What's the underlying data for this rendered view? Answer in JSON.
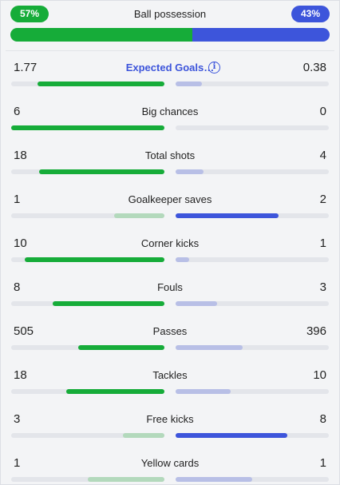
{
  "possession": {
    "title": "Ball possession",
    "home_label": "57%",
    "away_label": "43%",
    "home_pct": 57,
    "away_pct": 43
  },
  "stats": [
    {
      "label": "Expected Goals…",
      "home": "1.77",
      "away": "0.38",
      "home_num": 1.77,
      "away_num": 0.38,
      "link": true,
      "info_icon": "info-icon",
      "home_fill": 0.83,
      "away_fill": 0.17
    },
    {
      "label": "Big chances",
      "home": "6",
      "away": "0",
      "home_num": 6,
      "away_num": 0,
      "home_fill": 1.0,
      "away_fill": 0.0
    },
    {
      "label": "Total shots",
      "home": "18",
      "away": "4",
      "home_num": 18,
      "away_num": 4,
      "home_fill": 0.82,
      "away_fill": 0.18
    },
    {
      "label": "Goalkeeper saves",
      "home": "1",
      "away": "2",
      "home_num": 1,
      "away_num": 2,
      "home_fill": 0.33,
      "away_fill": 0.67
    },
    {
      "label": "Corner kicks",
      "home": "10",
      "away": "1",
      "home_num": 10,
      "away_num": 1,
      "home_fill": 0.91,
      "away_fill": 0.09
    },
    {
      "label": "Fouls",
      "home": "8",
      "away": "3",
      "home_num": 8,
      "away_num": 3,
      "home_fill": 0.73,
      "away_fill": 0.27
    },
    {
      "label": "Passes",
      "home": "505",
      "away": "396",
      "home_num": 505,
      "away_num": 396,
      "home_fill": 0.56,
      "away_fill": 0.44
    },
    {
      "label": "Tackles",
      "home": "18",
      "away": "10",
      "home_num": 18,
      "away_num": 10,
      "home_fill": 0.64,
      "away_fill": 0.36
    },
    {
      "label": "Free kicks",
      "home": "3",
      "away": "8",
      "home_num": 3,
      "away_num": 8,
      "home_fill": 0.27,
      "away_fill": 0.73
    },
    {
      "label": "Yellow cards",
      "home": "1",
      "away": "1",
      "home_num": 1,
      "away_num": 1,
      "home_fill": 0.5,
      "away_fill": 0.5
    }
  ],
  "colors": {
    "home_win": "#16ac39",
    "home_lose": "#b3d9bc",
    "away_win": "#3d55db",
    "away_lose": "#b8bfe6",
    "link": "#3d55db"
  }
}
